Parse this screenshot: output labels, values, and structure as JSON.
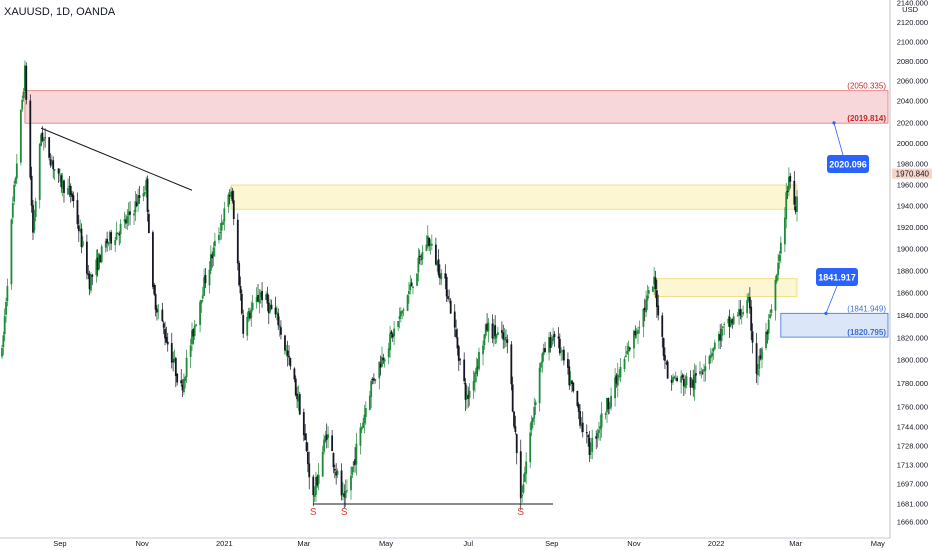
{
  "header": {
    "symbol": "XAUUSD, 1D, OANDA"
  },
  "colors": {
    "bull": "#1e8a3a",
    "bear": "#131722",
    "supply_fill": "#f8d7da",
    "supply_stroke": "#e57373",
    "yellow_fill": "#fdf6d3",
    "yellow_stroke": "#f2d66b",
    "blue_fill": "#dbe6f8",
    "blue_stroke": "#3d6fd9",
    "callout": "#2962ff",
    "s_mark": "#e53935"
  },
  "chart_data": {
    "type": "candlestick",
    "price_unit": "USD",
    "x_tick_labels": [
      "Sep",
      "Nov",
      "2021",
      "Mar",
      "May",
      "Jul",
      "Sep",
      "Nov",
      "2022",
      "Mar",
      "May"
    ],
    "y_tick_labels": [
      "2140.000",
      "2120.000",
      "2100.000",
      "2080.000",
      "2060.000",
      "2040.000",
      "2020.000",
      "2000.000",
      "1980.000",
      "1960.000",
      "1940.000",
      "1920.000",
      "1900.000",
      "1880.000",
      "1860.000",
      "1840.000",
      "1820.000",
      "1800.000",
      "1780.000",
      "1760.000",
      "1744.000",
      "1728.000",
      "1713.000",
      "1697.000",
      "1681.000",
      "1666.000"
    ],
    "y_tick_values": [
      2140,
      2120,
      2100,
      2080,
      2060,
      2040,
      2020,
      2000,
      1980,
      1960,
      1940,
      1920,
      1900,
      1880,
      1860,
      1840,
      1820,
      1800,
      1780,
      1760,
      1744,
      1728,
      1713,
      1697,
      1681,
      1666
    ],
    "last_price": "1970.840",
    "path": [
      [
        "2020-07-20",
        1805
      ],
      [
        "2020-07-28",
        1940
      ],
      [
        "2020-08-06",
        2070
      ],
      [
        "2020-08-12",
        1915
      ],
      [
        "2020-08-18",
        2010
      ],
      [
        "2020-08-31",
        1965
      ],
      [
        "2020-09-10",
        1950
      ],
      [
        "2020-09-23",
        1870
      ],
      [
        "2020-10-05",
        1905
      ],
      [
        "2020-10-20",
        1925
      ],
      [
        "2020-11-04",
        1960
      ],
      [
        "2020-11-09",
        1860
      ],
      [
        "2020-11-30",
        1775
      ],
      [
        "2020-12-15",
        1860
      ],
      [
        "2021-01-06",
        1955
      ],
      [
        "2021-01-15",
        1830
      ],
      [
        "2021-01-28",
        1860
      ],
      [
        "2021-02-10",
        1835
      ],
      [
        "2021-02-26",
        1760
      ],
      [
        "2021-03-08",
        1685
      ],
      [
        "2021-03-18",
        1740
      ],
      [
        "2021-03-31",
        1680
      ],
      [
        "2021-04-20",
        1780
      ],
      [
        "2021-05-12",
        1840
      ],
      [
        "2021-06-01",
        1910
      ],
      [
        "2021-06-16",
        1860
      ],
      [
        "2021-06-30",
        1765
      ],
      [
        "2021-07-15",
        1830
      ],
      [
        "2021-07-30",
        1815
      ],
      [
        "2021-08-09",
        1685
      ],
      [
        "2021-08-24",
        1800
      ],
      [
        "2021-09-03",
        1825
      ],
      [
        "2021-09-29",
        1725
      ],
      [
        "2021-10-22",
        1790
      ],
      [
        "2021-11-16",
        1870
      ],
      [
        "2021-11-26",
        1785
      ],
      [
        "2021-12-15",
        1780
      ],
      [
        "2022-01-05",
        1825
      ],
      [
        "2022-01-25",
        1850
      ],
      [
        "2022-01-31",
        1790
      ],
      [
        "2022-02-10",
        1835
      ],
      [
        "2022-02-18",
        1900
      ],
      [
        "2022-02-24",
        1970
      ],
      [
        "2022-03-01",
        1935
      ],
      [
        "2022-03-02",
        1955
      ]
    ],
    "trendline": {
      "from": [
        "2020-08-18",
        2015
      ],
      "to": [
        "2020-12-08",
        1955
      ]
    },
    "zones": [
      {
        "kind": "supply",
        "start": "2020-08-06",
        "top": 2050.335,
        "bottom": 2019.814,
        "top_label": "(2050.335)",
        "bottom_label": "(2019.814)"
      },
      {
        "kind": "yellow",
        "start": "2021-01-06",
        "top": 1960,
        "bottom": 1937
      },
      {
        "kind": "yellow",
        "start": "2021-11-16",
        "top": 1873,
        "bottom": 1857
      },
      {
        "kind": "demand",
        "start": "2022-02-18",
        "top": 1841.949,
        "bottom": 1820.795,
        "top_label": "(1841.949)",
        "bottom_label": "(1820.795)"
      }
    ],
    "support_line": {
      "from": [
        "2021-03-08",
        1681
      ],
      "to": [
        "2021-08-24",
        1681
      ]
    },
    "s_marks": [
      "2021-03-08",
      "2021-03-31",
      "2021-08-09"
    ],
    "callouts": [
      {
        "label": "2020.096",
        "price": 2020.096
      },
      {
        "label": "1841.917",
        "price": 1841.917
      }
    ]
  }
}
